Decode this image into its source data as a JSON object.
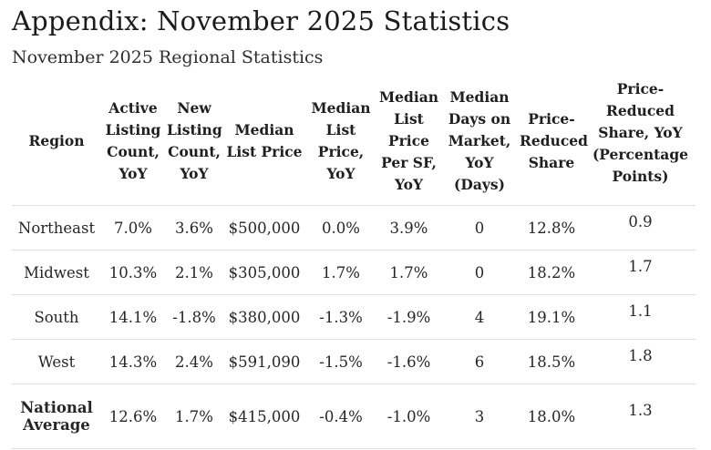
{
  "page": {
    "title": "Appendix: November 2025 Statistics",
    "subtitle": "November 2025 Regional Statistics"
  },
  "colors": {
    "background": "#ffffff",
    "text": "#222222",
    "row_divider": "#e0e0e0"
  },
  "table": {
    "columns": [
      "Region",
      "Active Listing Count, YoY",
      "New Listing Count, YoY",
      "Median List Price",
      "Median List Price, YoY",
      "Median List Price Per SF, YoY",
      "Median Days on Market, YoY (Days)",
      "Price-Reduced Share",
      "Price-Reduced Share, YoY (Percentage Points)"
    ],
    "rows": [
      {
        "region": "Northeast",
        "values": [
          "7.0%",
          "3.6%",
          "$500,000",
          "0.0%",
          "3.9%",
          "0",
          "12.8%",
          "0.9"
        ]
      },
      {
        "region": "Midwest",
        "values": [
          "10.3%",
          "2.1%",
          "$305,000",
          "1.7%",
          "1.7%",
          "0",
          "18.2%",
          "1.7"
        ]
      },
      {
        "region": "South",
        "values": [
          "14.1%",
          "-1.8%",
          "$380,000",
          "-1.3%",
          "-1.9%",
          "4",
          "19.1%",
          "1.1"
        ]
      },
      {
        "region": "West",
        "values": [
          "14.3%",
          "2.4%",
          "$591,090",
          "-1.5%",
          "-1.6%",
          "6",
          "18.5%",
          "1.8"
        ]
      },
      {
        "region": "National Average",
        "values": [
          "12.6%",
          "1.7%",
          "$415,000",
          "-0.4%",
          "-1.0%",
          "3",
          "18.0%",
          "1.3"
        ]
      }
    ]
  }
}
